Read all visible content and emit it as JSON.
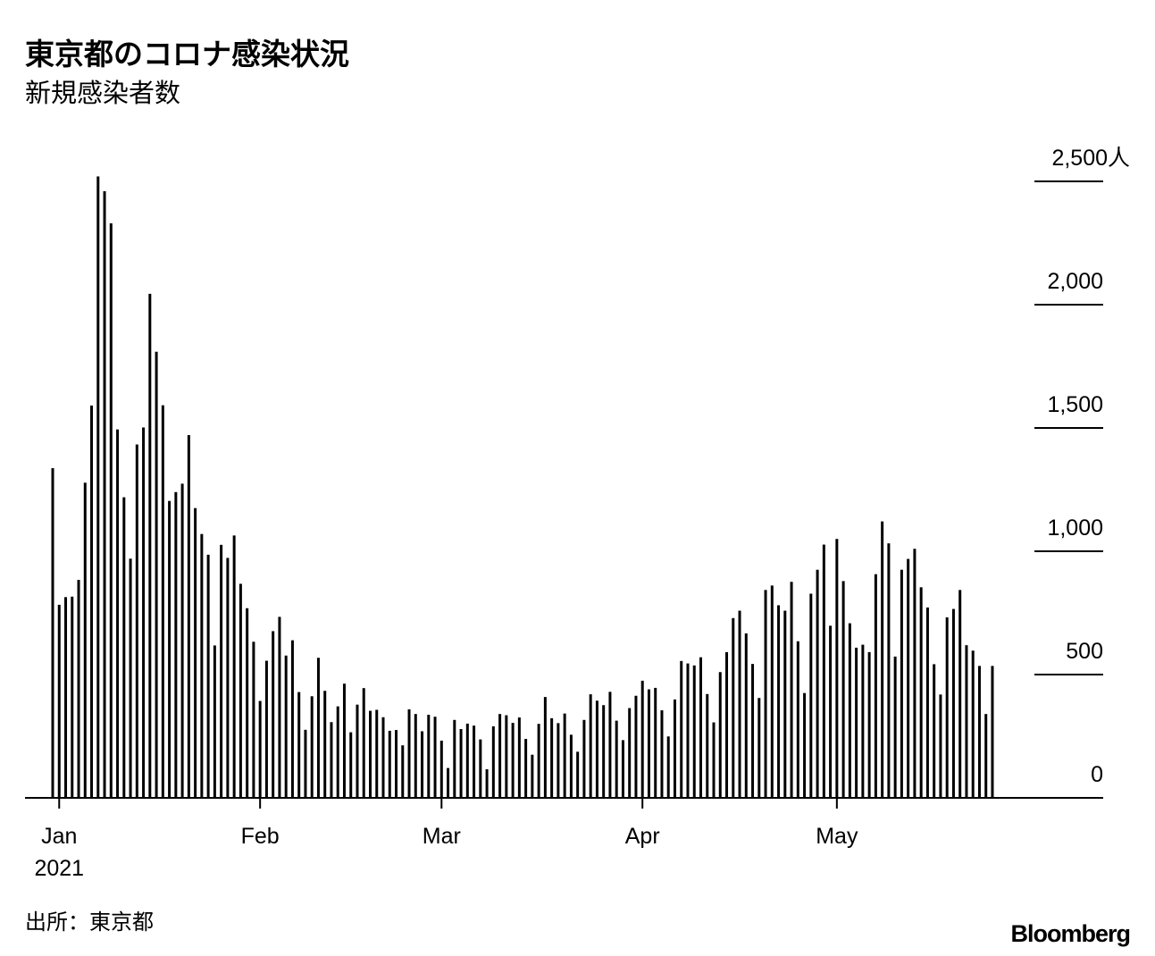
{
  "chart_data": {
    "type": "bar",
    "title": "東京都のコロナ感染状況",
    "subtitle": "新規感染者数",
    "categories": [
      null,
      "Jan",
      null,
      null,
      null,
      null,
      null,
      null,
      null,
      null,
      null,
      null,
      null,
      null,
      null,
      null,
      null,
      null,
      null,
      null,
      null,
      null,
      null,
      null,
      null,
      null,
      null,
      null,
      null,
      null,
      null,
      null,
      "Feb",
      null,
      null,
      null,
      null,
      null,
      null,
      null,
      null,
      null,
      null,
      null,
      null,
      null,
      null,
      null,
      null,
      null,
      null,
      null,
      null,
      null,
      null,
      null,
      null,
      null,
      null,
      null,
      "Mar",
      null,
      null,
      null,
      null,
      null,
      null,
      null,
      null,
      null,
      null,
      null,
      null,
      null,
      null,
      null,
      null,
      null,
      null,
      null,
      null,
      null,
      null,
      null,
      null,
      null,
      null,
      null,
      null,
      null,
      null,
      "Apr",
      null,
      null,
      null,
      null,
      null,
      null,
      null,
      null,
      null,
      null,
      null,
      null,
      null,
      null,
      null,
      null,
      null,
      null,
      null,
      null,
      null,
      null,
      null,
      null,
      null,
      null,
      null,
      null,
      null,
      "May",
      null,
      null,
      null,
      null,
      null,
      null,
      null,
      null,
      null,
      null,
      null,
      null,
      null,
      null,
      null,
      null,
      null,
      null,
      null,
      null,
      null,
      null,
      null,
      null
    ],
    "year": "2021",
    "values": [
      1337,
      783,
      814,
      816,
      884,
      1278,
      1591,
      2520,
      2460,
      2330,
      1494,
      1219,
      970,
      1433,
      1502,
      2044,
      1809,
      1592,
      1204,
      1240,
      1274,
      1471,
      1175,
      1070,
      986,
      618,
      1026,
      973,
      1064,
      868,
      769,
      633,
      393,
      556,
      676,
      734,
      577,
      639,
      429,
      276,
      412,
      568,
      434,
      307,
      371,
      463,
      266,
      378,
      445,
      353,
      357,
      327,
      272,
      275,
      213,
      359,
      340,
      270,
      337,
      329,
      232,
      121,
      316,
      279,
      301,
      293,
      237,
      116,
      290,
      340,
      335,
      304,
      326,
      239,
      175,
      300,
      409,
      323,
      303,
      342,
      256,
      187,
      316,
      420,
      394,
      376,
      430,
      313,
      234,
      364,
      414,
      475,
      440,
      446,
      355,
      249,
      399,
      555,
      545,
      537,
      570,
      421,
      306,
      510,
      591,
      729,
      759,
      667,
      543,
      405,
      843,
      861,
      781,
      759,
      876,
      635,
      425,
      828,
      925,
      1027,
      698,
      1050,
      879,
      708,
      609,
      621,
      591,
      907,
      1121,
      1032,
      573,
      925,
      969,
      1010,
      854,
      772,
      542,
      419,
      732,
      766,
      843,
      619,
      597,
      535,
      340,
      535
    ],
    "color": "#000000",
    "ylim": [
      0,
      2500
    ],
    "yticks": [
      0,
      500,
      {
        "value": 1000,
        "label": "1,000"
      },
      {
        "value": 1500,
        "label": "1,500"
      },
      {
        "value": 2000,
        "label": "2,000"
      },
      {
        "value": 2500,
        "label": "2,500人"
      }
    ]
  },
  "source": "出所：東京都",
  "brand": "Bloomberg"
}
